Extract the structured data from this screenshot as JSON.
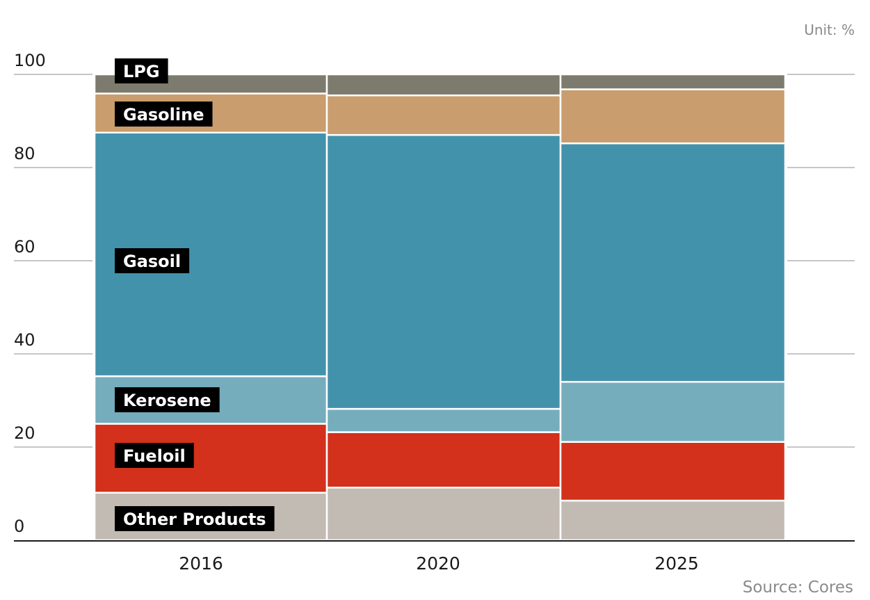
{
  "unit_label": "Unit: %",
  "source_label": "Source: Cores",
  "chart_data": {
    "type": "bar",
    "stacked": true,
    "categories": [
      "2016",
      "2020",
      "2025"
    ],
    "series": [
      {
        "name": "Other Products",
        "color": "#c2bbb3",
        "values": [
          10.2,
          11.3,
          8.5
        ]
      },
      {
        "name": "Fueloil",
        "color": "#d3311c",
        "values": [
          14.8,
          11.9,
          12.6
        ]
      },
      {
        "name": "Kerosene",
        "color": "#75adbd",
        "values": [
          10.2,
          5.0,
          12.9
        ]
      },
      {
        "name": "Gasoil",
        "color": "#4392ab",
        "values": [
          52.3,
          58.8,
          51.2
        ]
      },
      {
        "name": "Gasoline",
        "color": "#c99d6d",
        "values": [
          8.4,
          8.5,
          11.6
        ]
      },
      {
        "name": "LPG",
        "color": "#7d7b6d",
        "values": [
          4.1,
          4.5,
          3.2
        ]
      }
    ],
    "ylim": [
      0,
      100
    ],
    "yticks": [
      0,
      20,
      40,
      60,
      80,
      100
    ],
    "grid": true,
    "legend": "labels on first bar"
  }
}
